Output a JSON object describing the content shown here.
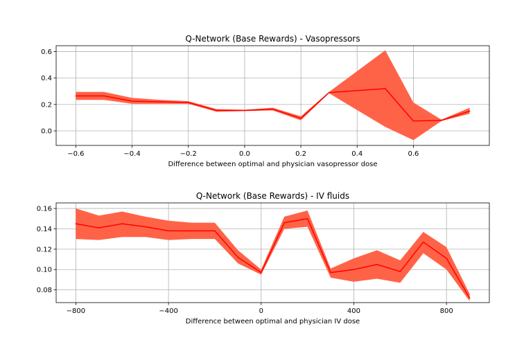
{
  "colors": {
    "band": "#ff6347",
    "line": "#ff0000",
    "grid": "#b0b0b0"
  },
  "chart_data": [
    {
      "type": "line",
      "title": "Q-Network (Base Rewards) - Vasopressors",
      "xlabel": "Difference between optimal and physician vasopressor dose",
      "ylabel": "",
      "xlim": [
        -0.67,
        0.87
      ],
      "ylim": [
        -0.11,
        0.645
      ],
      "xticks": [
        -0.6,
        -0.4,
        -0.2,
        0.0,
        0.2,
        0.4,
        0.6
      ],
      "xtick_labels": [
        "−0.6",
        "−0.4",
        "−0.2",
        "0.0",
        "0.2",
        "0.4",
        "0.6"
      ],
      "yticks": [
        0.0,
        0.2,
        0.4,
        0.6
      ],
      "ytick_labels": [
        "0.0",
        "0.2",
        "0.4",
        "0.6"
      ],
      "grid": true,
      "x": [
        -0.6,
        -0.5,
        -0.4,
        -0.3,
        -0.2,
        -0.1,
        0.0,
        0.1,
        0.2,
        0.3,
        0.5,
        0.6,
        0.7,
        0.8
      ],
      "series": [
        {
          "values": [
            0.265,
            0.265,
            0.225,
            0.22,
            0.215,
            0.155,
            0.155,
            0.165,
            0.095,
            0.29,
            0.32,
            0.075,
            0.08,
            0.15
          ],
          "lower": [
            0.235,
            0.235,
            0.205,
            0.205,
            0.205,
            0.145,
            0.15,
            0.155,
            0.08,
            0.285,
            0.03,
            -0.07,
            0.075,
            0.13
          ],
          "upper": [
            0.295,
            0.295,
            0.25,
            0.235,
            0.225,
            0.165,
            0.16,
            0.175,
            0.11,
            0.295,
            0.61,
            0.215,
            0.085,
            0.175
          ]
        }
      ]
    },
    {
      "type": "line",
      "title": "Q-Network (Base Rewards) - IV fluids",
      "xlabel": "Difference between optimal and physician IV dose",
      "ylabel": "",
      "xlim": [
        -885,
        985
      ],
      "ylim": [
        0.0675,
        0.1655
      ],
      "xticks": [
        -800,
        -400,
        0,
        400,
        800
      ],
      "xtick_labels": [
        "−800",
        "−400",
        "0",
        "400",
        "800"
      ],
      "yticks": [
        0.08,
        0.1,
        0.12,
        0.14,
        0.16
      ],
      "ytick_labels": [
        "0.08",
        "0.10",
        "0.12",
        "0.14",
        "0.16"
      ],
      "grid": true,
      "x": [
        -800,
        -700,
        -600,
        -500,
        -400,
        -300,
        -200,
        -100,
        0,
        100,
        200,
        300,
        400,
        500,
        600,
        700,
        800,
        900
      ],
      "series": [
        {
          "values": [
            0.145,
            0.141,
            0.145,
            0.142,
            0.138,
            0.138,
            0.138,
            0.112,
            0.097,
            0.146,
            0.15,
            0.097,
            0.1,
            0.105,
            0.098,
            0.127,
            0.111,
            0.072
          ],
          "lower": [
            0.13,
            0.129,
            0.132,
            0.132,
            0.129,
            0.13,
            0.13,
            0.106,
            0.095,
            0.14,
            0.142,
            0.092,
            0.088,
            0.091,
            0.087,
            0.116,
            0.1,
            0.069
          ],
          "upper": [
            0.16,
            0.153,
            0.157,
            0.152,
            0.148,
            0.146,
            0.146,
            0.119,
            0.1,
            0.152,
            0.158,
            0.101,
            0.111,
            0.119,
            0.109,
            0.137,
            0.122,
            0.076
          ]
        }
      ]
    }
  ]
}
